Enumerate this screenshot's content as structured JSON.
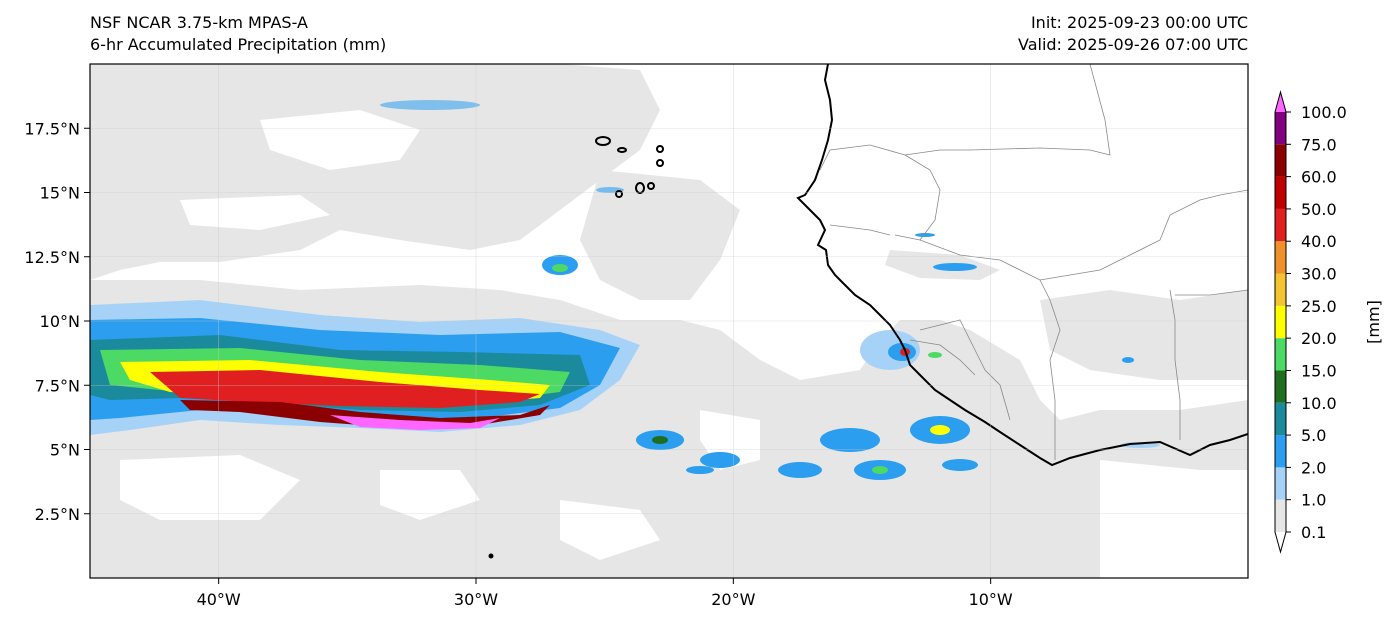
{
  "header": {
    "model": "NSF NCAR 3.75-km MPAS-A",
    "field": "6-hr Accumulated Precipitation (mm)",
    "init": "Init: 2025-09-23 00:00 UTC",
    "valid": "Valid: 2025-09-26 07:00 UTC"
  },
  "axes": {
    "lon_ticks": [
      "40°W",
      "30°W",
      "20°W",
      "10°W"
    ],
    "lat_ticks": [
      "2.5°N",
      "5°N",
      "7.5°N",
      "10°N",
      "12.5°N",
      "15°N",
      "17.5°N"
    ]
  },
  "colorbar": {
    "unit_label": "[mm]",
    "levels": [
      "0.1",
      "1.0",
      "2.0",
      "5.0",
      "10.0",
      "15.0",
      "20.0",
      "25.0",
      "30.0",
      "40.0",
      "50.0",
      "60.0",
      "75.0",
      "100.0"
    ],
    "colors": [
      "#e6e6e6",
      "#a6d2f7",
      "#2b9ef0",
      "#1a8a9c",
      "#1f6e1f",
      "#4cd964",
      "#ffff00",
      "#f4c430",
      "#f0902a",
      "#e02020",
      "#c00000",
      "#8b0000",
      "#800080",
      "#ff66ff"
    ]
  },
  "map": {
    "extent_lon": [
      -45,
      0
    ],
    "extent_lat": [
      0,
      20
    ],
    "background": "#ffffff",
    "light_precip_color": "#e6e6e6",
    "coastline_color": "#000000"
  }
}
